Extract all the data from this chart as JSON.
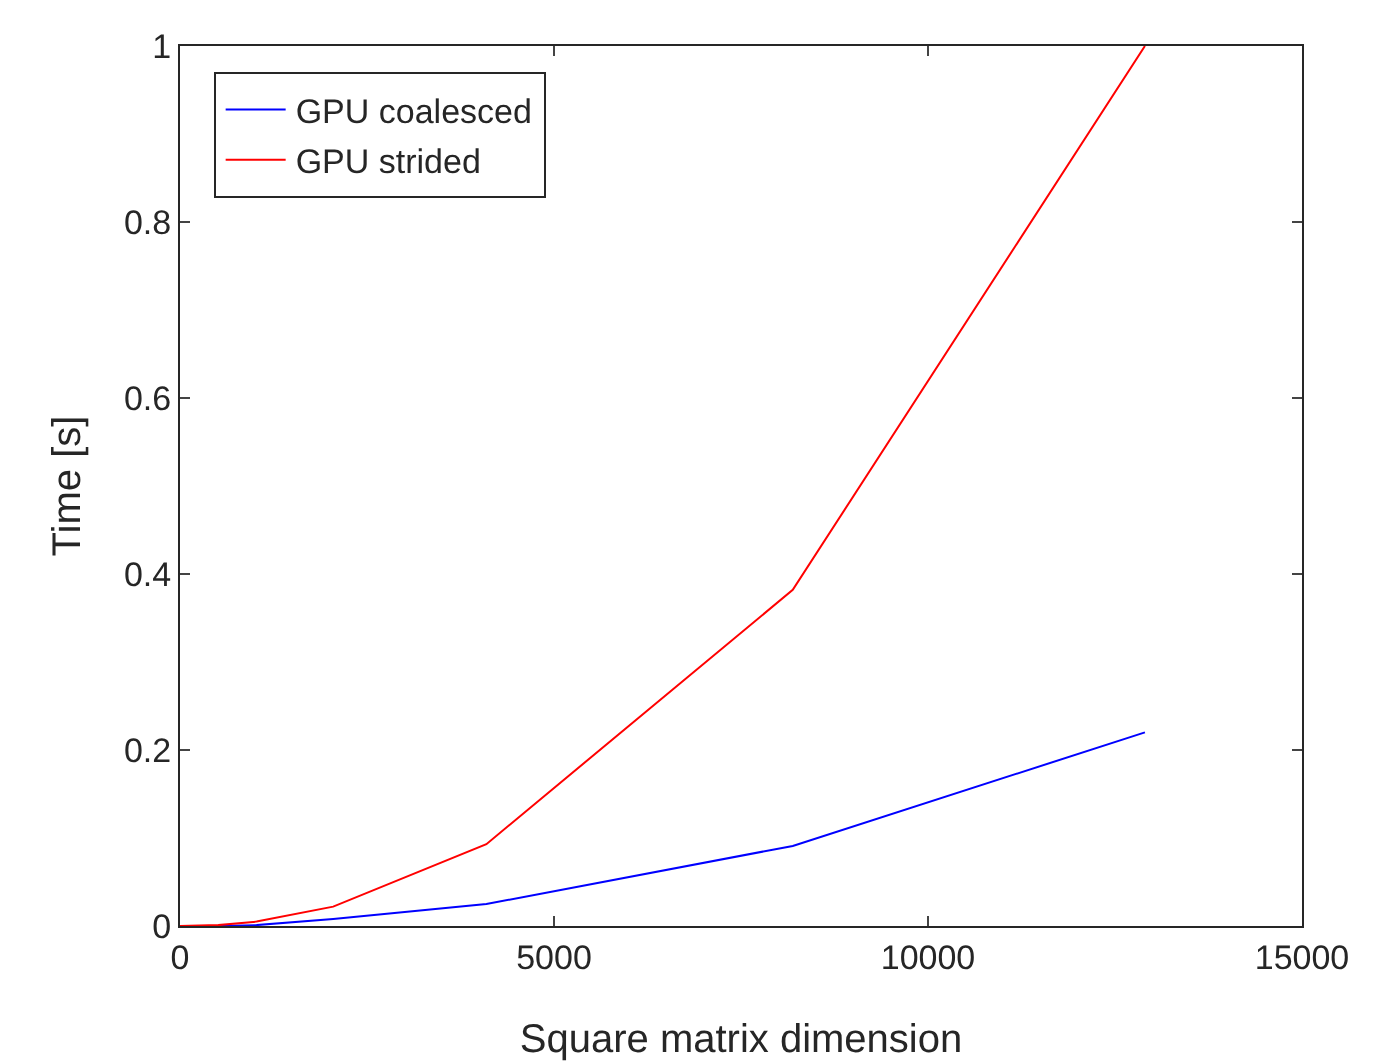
{
  "chart_data": {
    "type": "line",
    "xlabel": "Square matrix dimension",
    "ylabel": "Time [s]",
    "xlim": [
      0,
      15000
    ],
    "xticks": [
      0,
      5000,
      10000,
      15000
    ],
    "ylim": [
      0,
      1
    ],
    "yticks": [
      0,
      0.2,
      0.4,
      0.6,
      0.8,
      1
    ],
    "grid": false,
    "legend": "top left",
    "marker": "none",
    "line_style": "solid",
    "series": [
      {
        "name": "GPU coalesced",
        "color": "#0000ff",
        "x": [
          0,
          512,
          1024,
          2048,
          4096,
          8192,
          12900
        ],
        "values": [
          0,
          0,
          0.001,
          0.008,
          0.025,
          0.091,
          0.22
        ]
      },
      {
        "name": "GPU strided",
        "color": "#ff0000",
        "x": [
          0,
          512,
          1024,
          2048,
          4096,
          8192,
          12900
        ],
        "values": [
          0,
          0.001,
          0.005,
          0.022,
          0.093,
          0.382,
          1
        ]
      }
    ]
  }
}
